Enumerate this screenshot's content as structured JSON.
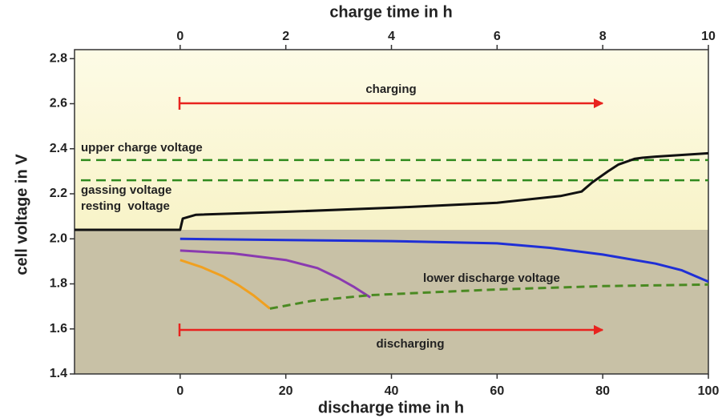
{
  "chart_data": {
    "type": "line",
    "x_label": "discharge time in h",
    "x2_label": "charge time in h",
    "y_label": "cell voltage in V",
    "xlim": [
      -20,
      100
    ],
    "xticks": [
      0,
      20,
      40,
      60,
      80,
      100
    ],
    "x2lim": [
      -2,
      10
    ],
    "x2ticks": [
      0,
      2,
      4,
      6,
      8,
      10
    ],
    "ylim": [
      1.4,
      2.84
    ],
    "yticks": [
      {
        "value": 1.4,
        "label": "1.4"
      },
      {
        "value": 1.6,
        "label": "1.6"
      },
      {
        "value": 1.8,
        "label": "1.8"
      },
      {
        "value": 2.0,
        "label": "2.0"
      },
      {
        "value": 2.2,
        "label": "2.2"
      },
      {
        "value": 2.4,
        "label": "2.4"
      },
      {
        "value": 2.6,
        "label": "2.6"
      },
      {
        "value": 2.8,
        "label": "2.8"
      }
    ],
    "background_split": 2.04,
    "series": [
      {
        "color": "#111111",
        "axis": "x2",
        "dash": false,
        "x": [
          -2,
          0,
          0.05,
          0.3,
          2,
          4.2,
          6,
          7.2,
          7.6,
          7.8,
          8.1,
          8.3,
          8.6,
          8.75,
          9,
          10
        ],
        "values": [
          2.04,
          2.04,
          2.09,
          2.107,
          2.12,
          2.14,
          2.16,
          2.19,
          2.21,
          2.25,
          2.3,
          2.33,
          2.355,
          2.36,
          2.365,
          2.38
        ]
      },
      {
        "color": "#1f2fd6",
        "axis": "x",
        "dash": false,
        "x": [
          0,
          20,
          40,
          60,
          70,
          80,
          90,
          95,
          100
        ],
        "values": [
          2.0,
          1.995,
          1.99,
          1.98,
          1.96,
          1.93,
          1.89,
          1.86,
          1.81
        ]
      },
      {
        "color": "#8a3ab0",
        "axis": "x",
        "dash": false,
        "x": [
          0,
          10,
          20,
          26,
          30,
          33,
          36
        ],
        "values": [
          1.948,
          1.935,
          1.906,
          1.87,
          1.825,
          1.785,
          1.74
        ]
      },
      {
        "color": "#f0a020",
        "axis": "x",
        "dash": false,
        "x": [
          0,
          4,
          8,
          11,
          14,
          17
        ],
        "values": [
          1.906,
          1.875,
          1.835,
          1.795,
          1.747,
          1.69
        ]
      },
      {
        "color": "#4a8a22",
        "axis": "x",
        "dash": true,
        "x": [
          17,
          25,
          36,
          50,
          60,
          80,
          100
        ],
        "values": [
          1.69,
          1.725,
          1.75,
          1.765,
          1.775,
          1.79,
          1.797
        ]
      }
    ],
    "reference_lines": [
      {
        "value": 2.35,
        "color": "#2f8a1e"
      },
      {
        "value": 2.26,
        "color": "#2f8a1e"
      }
    ],
    "annotations": [
      "charging",
      "discharging",
      "upper charge voltage",
      "gassing voltage",
      "resting  voltage",
      "lower discharge voltage"
    ]
  }
}
